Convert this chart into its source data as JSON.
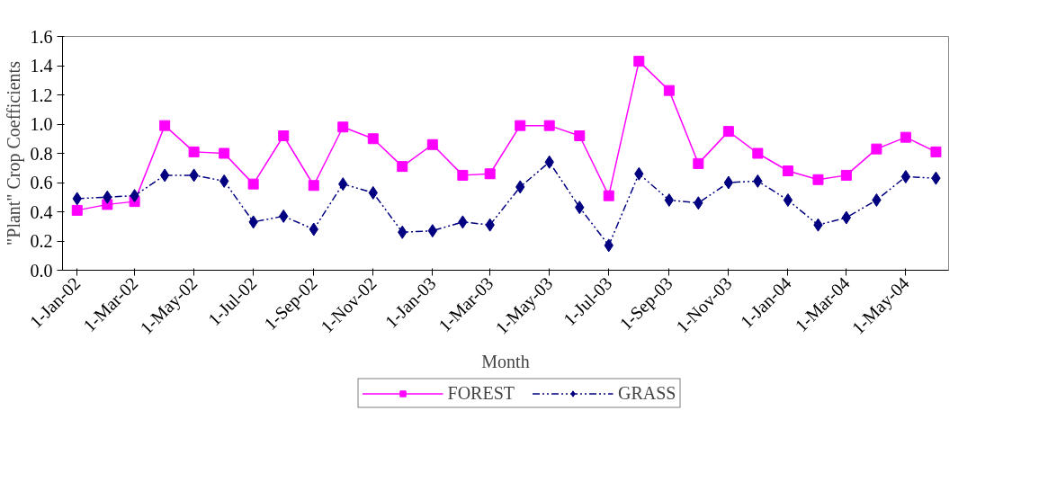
{
  "chart_data": {
    "type": "line",
    "xlabel": "Month",
    "ylabel": "\"Plant\" Crop Coefficients",
    "x": [
      "2002-01",
      "2002-02",
      "2002-03",
      "2002-04",
      "2002-05",
      "2002-06",
      "2002-07",
      "2002-08",
      "2002-09",
      "2002-10",
      "2002-11",
      "2002-12",
      "2003-01",
      "2003-02",
      "2003-03",
      "2003-04",
      "2003-05",
      "2003-06",
      "2003-07",
      "2003-08",
      "2003-09",
      "2003-10",
      "2003-11",
      "2003-12",
      "2004-01",
      "2004-02",
      "2004-03",
      "2004-04",
      "2004-05",
      "2004-06"
    ],
    "series": [
      {
        "name": "FOREST",
        "color": "#ff00ff",
        "marker": "square",
        "line_style": "solid",
        "values": [
          0.41,
          0.45,
          0.47,
          0.99,
          0.81,
          0.8,
          0.59,
          0.92,
          0.58,
          0.98,
          0.9,
          0.71,
          0.86,
          0.65,
          0.66,
          0.99,
          0.99,
          0.92,
          0.51,
          1.43,
          1.23,
          0.73,
          0.95,
          0.8,
          0.68,
          0.62,
          0.65,
          0.83,
          0.91,
          0.81
        ]
      },
      {
        "name": "GRASS",
        "color": "#000080",
        "marker": "diamond",
        "line_style": "dashed",
        "values": [
          0.49,
          0.5,
          0.51,
          0.65,
          0.65,
          0.61,
          0.33,
          0.37,
          0.28,
          0.59,
          0.53,
          0.26,
          0.27,
          0.33,
          0.31,
          0.57,
          0.74,
          0.43,
          0.17,
          0.66,
          0.48,
          0.46,
          0.6,
          0.61,
          0.48,
          0.31,
          0.36,
          0.48,
          0.64,
          0.63
        ]
      }
    ],
    "xlim": [
      "2001-12-17",
      "2004-06-14"
    ],
    "xticks": [
      {
        "value": "2002-01-01",
        "label": "1-Jan-02"
      },
      {
        "value": "2002-03-01",
        "label": "1-Mar-02"
      },
      {
        "value": "2002-05-01",
        "label": "1-May-02"
      },
      {
        "value": "2002-07-01",
        "label": "1-Jul-02"
      },
      {
        "value": "2002-09-01",
        "label": "1-Sep-02"
      },
      {
        "value": "2002-11-01",
        "label": "1-Nov-02"
      },
      {
        "value": "2003-01-01",
        "label": "1-Jan-03"
      },
      {
        "value": "2003-03-01",
        "label": "1-Mar-03"
      },
      {
        "value": "2003-05-01",
        "label": "1-May-03"
      },
      {
        "value": "2003-07-01",
        "label": "1-Jul-03"
      },
      {
        "value": "2003-09-01",
        "label": "1-Sep-03"
      },
      {
        "value": "2003-11-01",
        "label": "1-Nov-03"
      },
      {
        "value": "2004-01-01",
        "label": "1-Jan-04"
      },
      {
        "value": "2004-03-01",
        "label": "1-Mar-04"
      },
      {
        "value": "2004-05-01",
        "label": "1-May-04"
      }
    ],
    "ylim": [
      0,
      1.6
    ],
    "yticks": [
      {
        "value": 0,
        "label": "0.0"
      },
      0.2,
      0.4,
      0.6,
      0.8,
      {
        "value": 1.0,
        "label": "1.0"
      },
      1.2,
      1.4,
      1.6
    ],
    "grid": false,
    "legend": "bottom"
  }
}
